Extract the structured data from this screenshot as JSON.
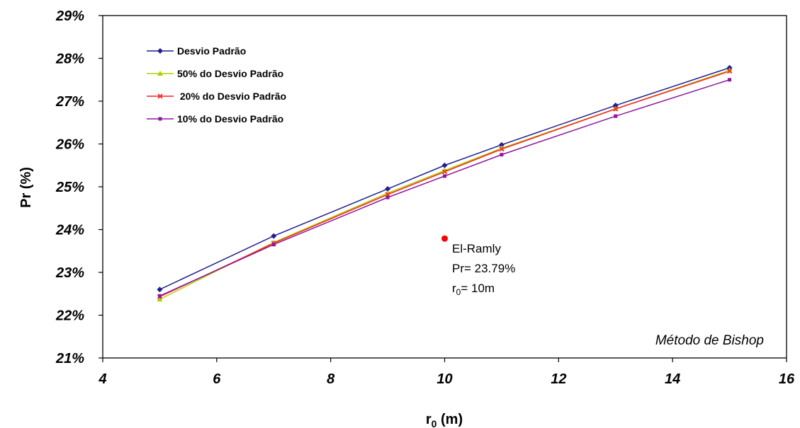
{
  "chart_data": {
    "type": "line",
    "xlabel_main": "r",
    "xlabel_sub": "0",
    "xlabel_unit": " (m)",
    "ylabel": "Pr (%)",
    "xlim": [
      4,
      16
    ],
    "ylim": [
      21,
      29
    ],
    "x_ticks": [
      4,
      6,
      8,
      10,
      12,
      14,
      16
    ],
    "y_ticks": [
      21,
      22,
      23,
      24,
      25,
      26,
      27,
      28,
      29
    ],
    "y_tick_suffix": "%",
    "grid": false,
    "legend_position": "top-left",
    "x": [
      5,
      7,
      9,
      10,
      11,
      13,
      15
    ],
    "series": [
      {
        "name": "Desvio Padrão",
        "color": "#1f1f8f",
        "marker": "diamond",
        "values": [
          22.6,
          23.85,
          24.95,
          25.5,
          25.98,
          26.9,
          27.78
        ]
      },
      {
        "name": "50% do Desvio Padrão",
        "color": "#a8d400",
        "marker": "triangle",
        "values": [
          22.37,
          23.7,
          24.85,
          25.38,
          25.9,
          26.82,
          27.72
        ]
      },
      {
        "name": " 20% do Desvio Padrão",
        "color": "#ff2020",
        "marker": "cross",
        "values": [
          22.43,
          23.68,
          24.82,
          25.35,
          25.88,
          26.82,
          27.7
        ]
      },
      {
        "name": "10% do Desvio Padrão",
        "color": "#8b1a9e",
        "marker": "square",
        "values": [
          22.45,
          23.65,
          24.75,
          25.25,
          25.75,
          26.65,
          27.5
        ]
      }
    ],
    "point": {
      "x": 10,
      "y": 23.79,
      "color": "#ff0000"
    },
    "annotation": {
      "line1": "El-Ramly",
      "line2": "Pr= 23.79%",
      "line3_main": "r",
      "line3_sub": "0",
      "line3_rest": "= 10m"
    },
    "method_label": "Método de Bishop"
  }
}
